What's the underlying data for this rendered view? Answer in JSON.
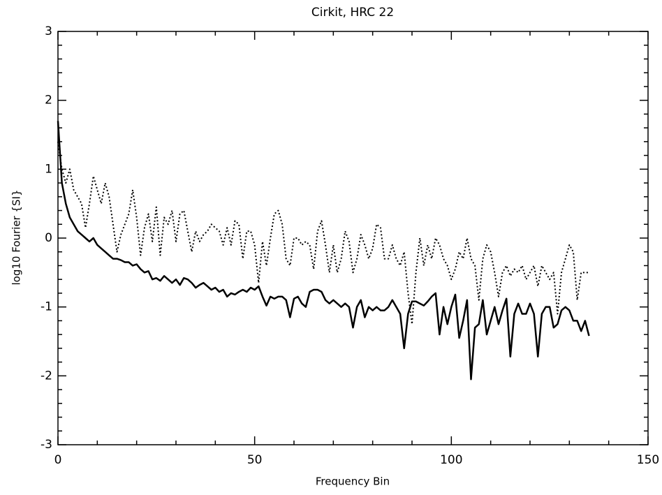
{
  "chart_data": {
    "type": "line",
    "title": "Cirkit, HRC 22",
    "xlabel": "Frequency Bin",
    "ylabel": "log10 Fourier {SI}",
    "x": [
      0,
      1,
      2,
      3,
      4,
      5,
      6,
      7,
      8,
      9,
      10,
      11,
      12,
      13,
      14,
      15,
      16,
      17,
      18,
      19,
      20,
      21,
      22,
      23,
      24,
      25,
      26,
      27,
      28,
      29,
      30,
      31,
      32,
      33,
      34,
      35,
      36,
      37,
      38,
      39,
      40,
      41,
      42,
      43,
      44,
      45,
      46,
      47,
      48,
      49,
      50,
      51,
      52,
      53,
      54,
      55,
      56,
      57,
      58,
      59,
      60,
      61,
      62,
      63,
      64,
      65,
      66,
      67,
      68,
      69,
      70,
      71,
      72,
      73,
      74,
      75,
      76,
      77,
      78,
      79,
      80,
      81,
      82,
      83,
      84,
      85,
      86,
      87,
      88,
      89,
      90,
      91,
      92,
      93,
      94,
      95,
      96,
      97,
      98,
      99,
      100,
      101,
      102,
      103,
      104,
      105,
      106,
      107,
      108,
      109,
      110,
      111,
      112,
      113,
      114,
      115,
      116,
      117,
      118,
      119,
      120,
      121,
      122,
      123,
      124,
      125,
      126,
      127,
      128,
      129,
      130,
      131,
      132,
      133,
      134,
      135
    ],
    "series": [
      {
        "color": "#000000",
        "linestyle": "solid",
        "values": [
          1.7,
          0.8,
          0.5,
          0.3,
          0.2,
          0.1,
          0.05,
          0,
          -0.05,
          0,
          -0.1,
          -0.15,
          -0.2,
          -0.25,
          -0.3,
          -0.3,
          -0.32,
          -0.35,
          -0.35,
          -0.4,
          -0.38,
          -0.45,
          -0.5,
          -0.48,
          -0.6,
          -0.58,
          -0.62,
          -0.55,
          -0.6,
          -0.65,
          -0.6,
          -0.68,
          -0.58,
          -0.6,
          -0.65,
          -0.72,
          -0.68,
          -0.65,
          -0.7,
          -0.75,
          -0.72,
          -0.78,
          -0.75,
          -0.85,
          -0.8,
          -0.82,
          -0.78,
          -0.75,
          -0.78,
          -0.72,
          -0.75,
          -0.7,
          -0.85,
          -0.98,
          -0.85,
          -0.88,
          -0.85,
          -0.85,
          -0.9,
          -1.15,
          -0.88,
          -0.85,
          -0.95,
          -1.0,
          -0.78,
          -0.75,
          -0.75,
          -0.78,
          -0.9,
          -0.95,
          -0.9,
          -0.95,
          -1.0,
          -0.95,
          -1.0,
          -1.3,
          -1.0,
          -0.9,
          -1.15,
          -1.0,
          -1.05,
          -1.0,
          -1.05,
          -1.05,
          -1.0,
          -0.9,
          -1.0,
          -1.1,
          -1.6,
          -1.1,
          -0.92,
          -0.92,
          -0.95,
          -0.98,
          -0.92,
          -0.85,
          -0.8,
          -1.4,
          -1.0,
          -1.25,
          -1.0,
          -0.82,
          -1.45,
          -1.2,
          -0.9,
          -2.05,
          -1.3,
          -1.25,
          -0.9,
          -1.4,
          -1.2,
          -1.0,
          -1.25,
          -1.05,
          -0.88,
          -1.72,
          -1.1,
          -0.95,
          -1.1,
          -1.1,
          -0.95,
          -1.1,
          -1.72,
          -1.1,
          -1.0,
          -1.0,
          -1.3,
          -1.25,
          -1.05,
          -1.0,
          -1.05,
          -1.2,
          -1.2,
          -1.35,
          -1.2,
          -1.42
        ]
      },
      {
        "color": "#000000",
        "linestyle": "dotted",
        "values": [
          1.4,
          1.0,
          0.8,
          1.0,
          0.7,
          0.6,
          0.5,
          0.15,
          0.5,
          0.9,
          0.7,
          0.5,
          0.8,
          0.6,
          0.2,
          -0.2,
          0.05,
          0.2,
          0.35,
          0.7,
          0.3,
          -0.25,
          0.15,
          0.35,
          -0.05,
          0.45,
          -0.25,
          0.3,
          0.2,
          0.4,
          -0.05,
          0.35,
          0.4,
          0.1,
          -0.2,
          0.1,
          -0.05,
          0.05,
          0.1,
          0.2,
          0.15,
          0.1,
          -0.1,
          0.15,
          -0.1,
          0.25,
          0.2,
          -0.3,
          0.1,
          0.1,
          -0.1,
          -0.65,
          -0.05,
          -0.4,
          0.0,
          0.35,
          0.4,
          0.2,
          -0.3,
          -0.4,
          0.0,
          0.0,
          -0.1,
          -0.05,
          -0.1,
          -0.45,
          0.1,
          0.25,
          -0.1,
          -0.5,
          -0.1,
          -0.5,
          -0.3,
          0.1,
          -0.05,
          -0.5,
          -0.3,
          0.05,
          -0.1,
          -0.3,
          -0.15,
          0.2,
          0.15,
          -0.3,
          -0.3,
          -0.1,
          -0.3,
          -0.4,
          -0.2,
          -0.8,
          -1.25,
          -0.5,
          0.0,
          -0.4,
          -0.1,
          -0.3,
          0.0,
          -0.1,
          -0.3,
          -0.4,
          -0.6,
          -0.45,
          -0.2,
          -0.3,
          0.0,
          -0.3,
          -0.4,
          -0.9,
          -0.3,
          -0.1,
          -0.2,
          -0.5,
          -0.85,
          -0.5,
          -0.4,
          -0.55,
          -0.45,
          -0.5,
          -0.4,
          -0.6,
          -0.5,
          -0.4,
          -0.7,
          -0.4,
          -0.5,
          -0.6,
          -0.5,
          -1.1,
          -0.5,
          -0.3,
          -0.1,
          -0.2,
          -0.9,
          -0.5,
          -0.5,
          -0.5
        ]
      }
    ],
    "xlim": [
      0,
      150
    ],
    "xticks": [
      0,
      50,
      100,
      150
    ],
    "xminor_per_major": 5,
    "ylim": [
      -3,
      3
    ],
    "yticks": [
      -3,
      -2,
      -1,
      0,
      1,
      2,
      3
    ],
    "yminor_per_major": 5,
    "grid": false
  }
}
